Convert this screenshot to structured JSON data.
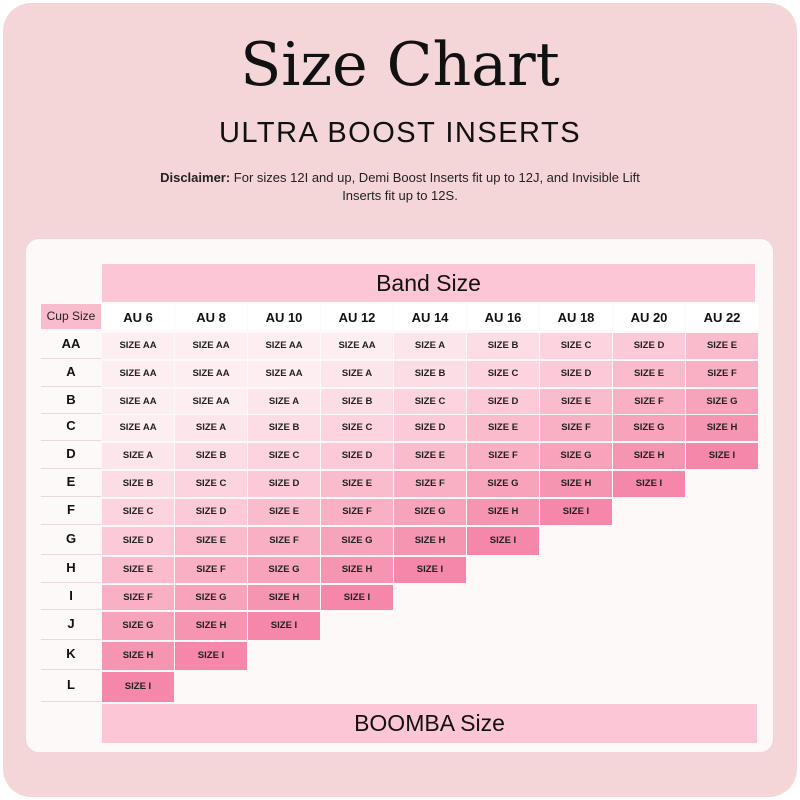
{
  "title": "Size Chart",
  "subtitle": "ULTRA BOOST INSERTS",
  "disclaimer": {
    "label": "Disclaimer:",
    "text": " For sizes 12I and up, Demi Boost Inserts fit up to 12J, and Invisible Lift Inserts fit up to 12S."
  },
  "table": {
    "band_header": "Band Size",
    "footer": "BOOMBA Size",
    "cup_header": "Cup Size",
    "columns": [
      "AU 6",
      "AU 8",
      "AU 10",
      "AU 12",
      "AU 14",
      "AU 16",
      "AU 18",
      "AU 20",
      "AU 22"
    ],
    "rows": [
      {
        "cup": "AA",
        "sizes": [
          "SIZE AA",
          "SIZE AA",
          "SIZE AA",
          "SIZE AA",
          "SIZE A",
          "SIZE B",
          "SIZE C",
          "SIZE D",
          "SIZE E"
        ]
      },
      {
        "cup": "A",
        "sizes": [
          "SIZE AA",
          "SIZE AA",
          "SIZE AA",
          "SIZE A",
          "SIZE B",
          "SIZE C",
          "SIZE D",
          "SIZE E",
          "SIZE F"
        ]
      },
      {
        "cup": "B",
        "sizes": [
          "SIZE AA",
          "SIZE AA",
          "SIZE A",
          "SIZE B",
          "SIZE C",
          "SIZE D",
          "SIZE E",
          "SIZE F",
          "SIZE G"
        ]
      },
      {
        "cup": "C",
        "sizes": [
          "SIZE AA",
          "SIZE A",
          "SIZE B",
          "SIZE C",
          "SIZE D",
          "SIZE E",
          "SIZE F",
          "SIZE G",
          "SIZE H"
        ]
      },
      {
        "cup": "D",
        "sizes": [
          "SIZE A",
          "SIZE B",
          "SIZE C",
          "SIZE D",
          "SIZE E",
          "SIZE F",
          "SIZE G",
          "SIZE H",
          "SIZE I"
        ]
      },
      {
        "cup": "E",
        "sizes": [
          "SIZE B",
          "SIZE C",
          "SIZE D",
          "SIZE E",
          "SIZE F",
          "SIZE G",
          "SIZE H",
          "SIZE I"
        ]
      },
      {
        "cup": "F",
        "sizes": [
          "SIZE C",
          "SIZE D",
          "SIZE E",
          "SIZE F",
          "SIZE G",
          "SIZE H",
          "SIZE I"
        ]
      },
      {
        "cup": "G",
        "sizes": [
          "SIZE D",
          "SIZE E",
          "SIZE F",
          "SIZE G",
          "SIZE H",
          "SIZE I"
        ]
      },
      {
        "cup": "H",
        "sizes": [
          "SIZE E",
          "SIZE F",
          "SIZE G",
          "SIZE H",
          "SIZE I"
        ]
      },
      {
        "cup": "I",
        "sizes": [
          "SIZE F",
          "SIZE G",
          "SIZE H",
          "SIZE I"
        ]
      },
      {
        "cup": "J",
        "sizes": [
          "SIZE G",
          "SIZE H",
          "SIZE I"
        ]
      },
      {
        "cup": "K",
        "sizes": [
          "SIZE H",
          "SIZE I"
        ]
      },
      {
        "cup": "L",
        "sizes": [
          "SIZE I"
        ]
      }
    ]
  },
  "size_colors": {
    "SIZE AA": "#fdeef2",
    "SIZE A": "#fde5ec",
    "SIZE B": "#fcdce5",
    "SIZE C": "#fcd3de",
    "SIZE D": "#fbc9d7",
    "SIZE E": "#fabccd",
    "SIZE F": "#f9b0c5",
    "SIZE G": "#f7a3bb",
    "SIZE H": "#f695b2",
    "SIZE I": "#f588aa"
  }
}
